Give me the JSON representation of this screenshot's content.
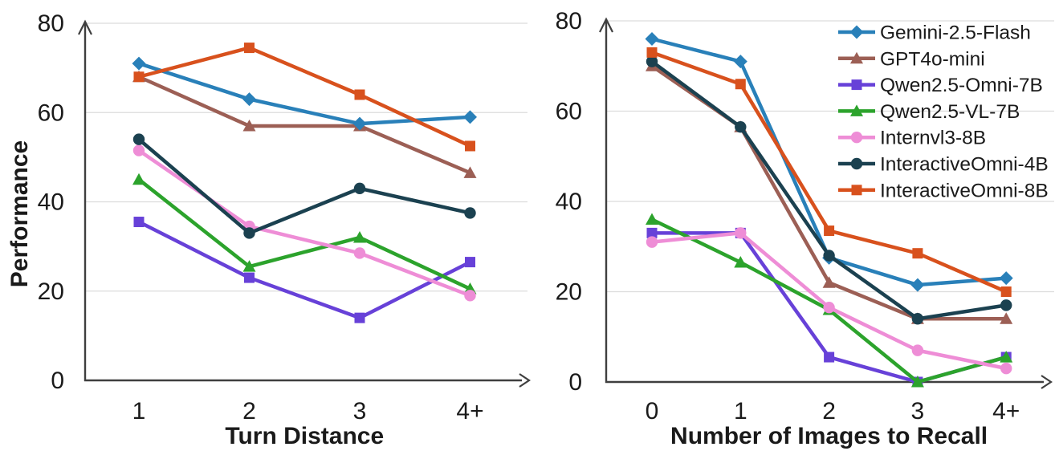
{
  "figure": {
    "description": "Two line charts comparing model performance",
    "background": "#ffffff",
    "grid_color": "#dcdcdc",
    "axis_color": "#3f3f3f",
    "text_color": "#1a1a1a"
  },
  "chart_data": [
    {
      "type": "line",
      "title": "",
      "xlabel": "Turn Distance",
      "ylabel": "Performance",
      "categories": [
        "1",
        "2",
        "3",
        "4+"
      ],
      "ylim": [
        0,
        80
      ],
      "yticks": [
        0,
        20,
        40,
        60,
        80
      ],
      "grid": true,
      "legend": false,
      "series": [
        {
          "name": "Gemini-2.5-Flash",
          "color": "#2980B9",
          "marker": "diamond",
          "values": [
            71,
            63,
            57.5,
            59
          ]
        },
        {
          "name": "GPT4o-mini",
          "color": "#9C5F55",
          "marker": "triangle",
          "values": [
            68,
            57,
            57,
            46.5
          ]
        },
        {
          "name": "Qwen2.5-Omni-7B",
          "color": "#6741D8",
          "marker": "square",
          "values": [
            35.5,
            23,
            14,
            26.5
          ]
        },
        {
          "name": "Qwen2.5-VL-7B",
          "color": "#2CA32C",
          "marker": "triangle",
          "values": [
            45,
            25.5,
            32,
            20.5
          ]
        },
        {
          "name": "Internvl3-8B",
          "color": "#EE8DD6",
          "marker": "circle",
          "values": [
            51.5,
            34.5,
            28.5,
            19
          ]
        },
        {
          "name": "InteractiveOmni-4B",
          "color": "#1B4150",
          "marker": "circle",
          "values": [
            54,
            33,
            43,
            37.5
          ]
        },
        {
          "name": "InteractiveOmni-8B",
          "color": "#D8511D",
          "marker": "square",
          "values": [
            68,
            74.5,
            64,
            52.5
          ]
        }
      ]
    },
    {
      "type": "line",
      "title": "",
      "xlabel": "Number of Images to Recall",
      "ylabel": "",
      "categories": [
        "0",
        "1",
        "2",
        "3",
        "4+"
      ],
      "ylim": [
        0,
        80
      ],
      "yticks": [
        0,
        20,
        40,
        60,
        80
      ],
      "grid": true,
      "legend": true,
      "legend_position": "top-right",
      "series": [
        {
          "name": "Gemini-2.5-Flash",
          "color": "#2980B9",
          "marker": "diamond",
          "values": [
            76,
            71,
            27.5,
            21.5,
            23
          ]
        },
        {
          "name": "GPT4o-mini",
          "color": "#9C5F55",
          "marker": "triangle",
          "values": [
            70,
            56.5,
            22,
            14,
            14
          ]
        },
        {
          "name": "Qwen2.5-Omni-7B",
          "color": "#6741D8",
          "marker": "square",
          "values": [
            33,
            33,
            5.5,
            0,
            5.5
          ]
        },
        {
          "name": "Qwen2.5-VL-7B",
          "color": "#2CA32C",
          "marker": "triangle",
          "values": [
            36,
            26.5,
            16,
            0,
            5.5
          ]
        },
        {
          "name": "Internvl3-8B",
          "color": "#EE8DD6",
          "marker": "circle",
          "values": [
            31,
            33,
            16.5,
            7,
            3
          ]
        },
        {
          "name": "InteractiveOmni-4B",
          "color": "#1B4150",
          "marker": "circle",
          "values": [
            71,
            56.5,
            28,
            14,
            17
          ]
        },
        {
          "name": "InteractiveOmni-8B",
          "color": "#D8511D",
          "marker": "square",
          "values": [
            73,
            66,
            33.5,
            28.5,
            20
          ]
        }
      ]
    }
  ]
}
